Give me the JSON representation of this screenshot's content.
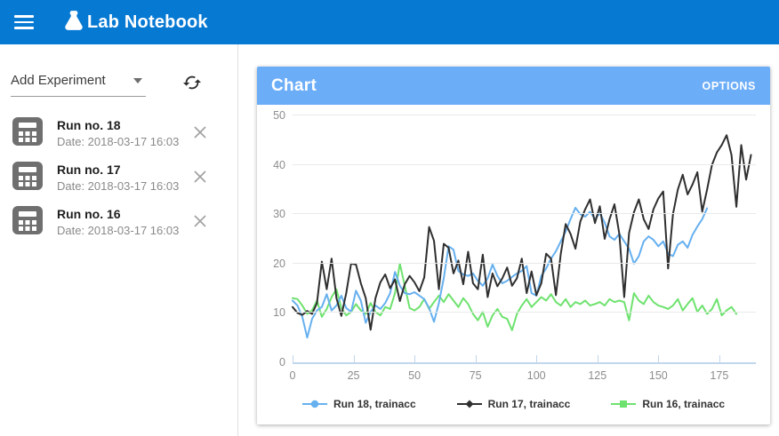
{
  "app": {
    "title": "Lab Notebook"
  },
  "theme": {
    "topbar_color": "#0679d3",
    "panel_header_color": "#6cadf8"
  },
  "sidebar": {
    "add_experiment_label": "Add Experiment",
    "refresh_icon": "sync-icon",
    "experiments": [
      {
        "icon": "calculator-icon",
        "title": "Run no. 18",
        "date": "Date: 2018-03-17 16:03"
      },
      {
        "icon": "calculator-icon",
        "title": "Run no. 17",
        "date": "Date: 2018-03-17 16:03"
      },
      {
        "icon": "calculator-icon",
        "title": "Run no. 16",
        "date": "Date: 2018-03-17 16:03"
      }
    ]
  },
  "chart_panel": {
    "title": "Chart",
    "options_label": "OPTIONS"
  },
  "chart_data": {
    "type": "line",
    "title": "Chart",
    "xlabel": "",
    "ylabel": "",
    "xlim": [
      0,
      190
    ],
    "ylim": [
      0,
      50
    ],
    "x_ticks": [
      0,
      25,
      50,
      75,
      100,
      125,
      150,
      175
    ],
    "y_ticks": [
      0,
      10,
      20,
      30,
      40,
      50
    ],
    "grid": true,
    "legend_position": "bottom",
    "series": [
      {
        "name": "Run 18, trainacc",
        "color": "#66b0ef",
        "marker": "circle",
        "x_start": 0,
        "x_step": 2,
        "values": [
          12.5,
          11.5,
          9.2,
          5.0,
          8.8,
          10.5,
          11.2,
          13.8,
          10.5,
          11.5,
          13.5,
          11.0,
          10.2,
          14.5,
          12.5,
          8.0,
          10.2,
          11.5,
          10.8,
          12.0,
          14.0,
          18.3,
          15.5,
          14.0,
          13.8,
          14.2,
          13.5,
          12.8,
          11.0,
          8.2,
          12.0,
          17.0,
          23.5,
          22.8,
          18.5,
          17.8,
          17.5,
          18.0,
          16.5,
          15.5,
          17.0,
          19.8,
          17.5,
          16.0,
          16.5,
          17.3,
          18.0,
          18.5,
          19.5,
          14.0,
          13.5,
          17.5,
          19.0,
          21.0,
          22.5,
          24.5,
          26.5,
          29.0,
          31.3,
          30.0,
          29.5,
          30.5,
          29.0,
          30.2,
          28.3,
          25.5,
          24.8,
          26.0,
          24.5,
          23.0,
          20.0,
          21.5,
          24.5,
          25.5,
          24.8,
          23.5,
          24.5,
          22.0,
          21.5,
          23.8,
          24.5,
          23.2,
          25.8,
          27.5,
          29.0,
          31.2
        ]
      },
      {
        "name": "Run 17, trainacc",
        "color": "#2f2f2f",
        "marker": "diamond",
        "x_start": 0,
        "x_step": 2,
        "values": [
          11.2,
          10.0,
          9.6,
          10.4,
          9.8,
          12.0,
          20.4,
          14.8,
          21.0,
          13.0,
          9.4,
          14.0,
          20.0,
          19.8,
          16.0,
          13.0,
          6.6,
          13.0,
          16.2,
          17.8,
          15.0,
          16.8,
          12.4,
          15.8,
          17.5,
          16.2,
          14.4,
          17.2,
          27.4,
          24.6,
          14.8,
          24.0,
          23.2,
          18.0,
          20.6,
          15.8,
          22.4,
          16.0,
          14.8,
          21.8,
          13.2,
          18.0,
          15.4,
          17.0,
          19.2,
          15.5,
          17.0,
          21.0,
          14.0,
          18.4,
          13.6,
          16.0,
          22.0,
          21.0,
          13.6,
          22.0,
          28.0,
          26.0,
          23.0,
          28.5,
          31.0,
          33.0,
          28.2,
          31.6,
          25.0,
          29.0,
          32.0,
          26.0,
          13.2,
          26.2,
          30.4,
          33.0,
          29.0,
          27.0,
          31.0,
          33.2,
          34.6,
          19.0,
          30.0,
          35.0,
          38.0,
          34.0,
          36.0,
          38.5,
          30.5,
          35.0,
          40.0,
          42.5,
          44.0,
          46.0,
          42.0,
          31.5,
          44.0,
          37.0,
          42.0
        ]
      },
      {
        "name": "Run 16, trainacc",
        "color": "#6ee26e",
        "marker": "square",
        "x_start": 0,
        "x_step": 2,
        "values": [
          13.0,
          12.8,
          11.5,
          9.8,
          10.5,
          12.5,
          9.2,
          10.8,
          13.2,
          14.8,
          11.0,
          9.5,
          10.2,
          11.8,
          10.5,
          9.8,
          12.0,
          10.2,
          9.5,
          11.2,
          10.8,
          14.0,
          20.0,
          15.5,
          11.0,
          10.5,
          11.2,
          12.8,
          10.8,
          12.2,
          13.5,
          12.2,
          13.8,
          12.5,
          11.2,
          13.0,
          11.8,
          9.8,
          8.5,
          10.2,
          7.2,
          9.5,
          10.8,
          9.2,
          8.8,
          6.5,
          9.8,
          11.5,
          12.8,
          11.2,
          12.2,
          13.2,
          12.5,
          13.8,
          12.2,
          11.5,
          12.8,
          11.2,
          12.2,
          11.8,
          12.5,
          11.5,
          11.8,
          12.2,
          11.5,
          12.8,
          12.2,
          12.5,
          12.2,
          8.5,
          14.0,
          12.5,
          11.8,
          13.5,
          12.2,
          11.5,
          11.2,
          10.8,
          11.5,
          12.8,
          10.5,
          11.8,
          13.0,
          10.2,
          11.5,
          9.8,
          10.8,
          12.8,
          9.5,
          10.5,
          11.2,
          9.8
        ]
      }
    ]
  }
}
